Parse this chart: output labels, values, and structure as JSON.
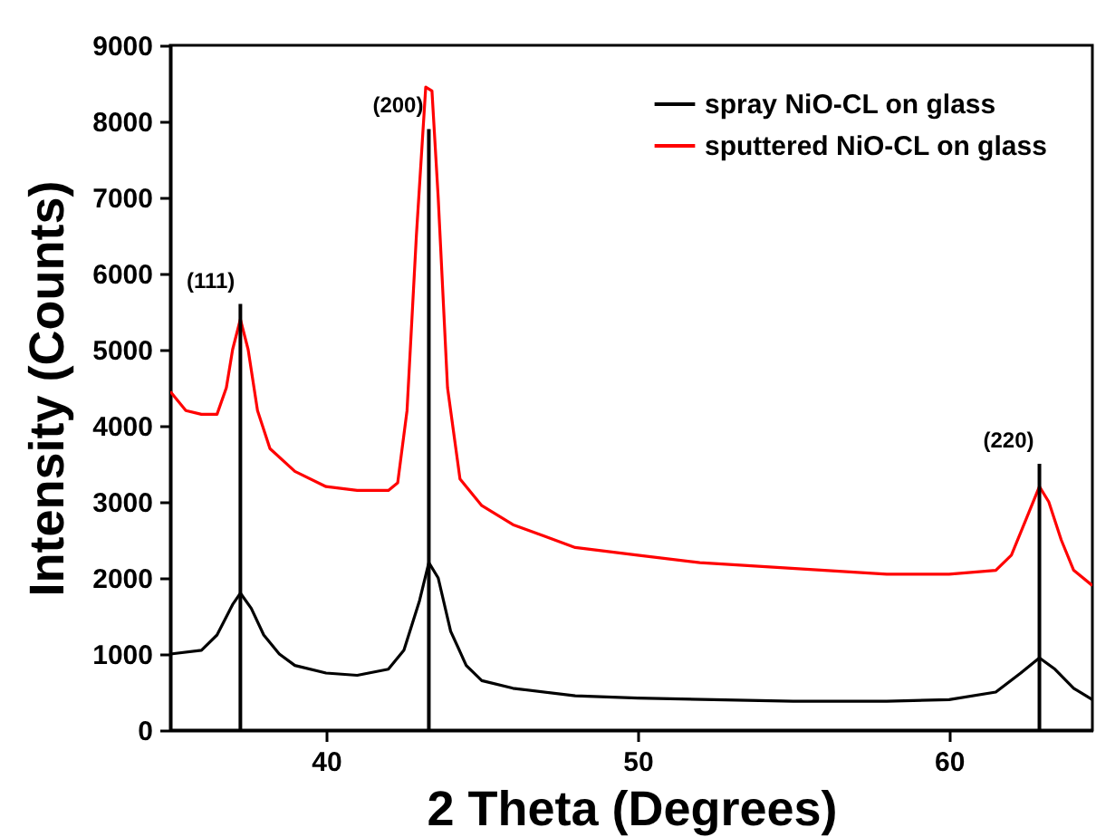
{
  "chart_data": {
    "type": "line",
    "xlabel": "2 Theta (Degrees)",
    "ylabel": "Intensity (Counts)",
    "xlim": [
      35,
      64.6
    ],
    "xticks": [
      40,
      50,
      60
    ],
    "ylim": [
      0,
      9000
    ],
    "yticks": [
      0,
      1000,
      2000,
      3000,
      4000,
      5000,
      6000,
      7000,
      8000,
      9000
    ],
    "legend": "top right",
    "grid": false,
    "series": [
      {
        "name": "spray  NiO-CL on glass",
        "color": "#000000",
        "x": [
          35,
          36,
          36.5,
          37,
          37.25,
          37.6,
          38,
          38.5,
          39,
          40,
          41,
          42,
          42.5,
          43,
          43.3,
          43.6,
          44,
          44.5,
          45,
          46,
          48,
          50,
          55,
          58,
          60,
          61.5,
          62.3,
          62.9,
          63.4,
          64,
          64.6
        ],
        "values": [
          1000,
          1050,
          1250,
          1650,
          1800,
          1600,
          1250,
          1000,
          850,
          750,
          720,
          800,
          1050,
          1700,
          2200,
          2000,
          1300,
          850,
          650,
          550,
          450,
          420,
          380,
          380,
          400,
          500,
          750,
          950,
          800,
          550,
          400
        ]
      },
      {
        "name": "sputtered  NiO-CL on glass",
        "color": "#ff0000",
        "x": [
          35,
          35.5,
          36,
          36.5,
          36.8,
          37,
          37.25,
          37.5,
          37.8,
          38.2,
          39,
          40,
          41,
          42,
          42.3,
          42.6,
          42.9,
          43.2,
          43.4,
          43.6,
          43.9,
          44.3,
          45,
          46,
          47,
          48,
          50,
          52,
          54,
          56,
          58,
          60,
          61.5,
          62,
          62.5,
          62.9,
          63.2,
          63.6,
          64,
          64.6
        ],
        "values": [
          4450,
          4200,
          4150,
          4150,
          4500,
          5000,
          5400,
          5000,
          4200,
          3700,
          3400,
          3200,
          3150,
          3150,
          3250,
          4200,
          6500,
          8450,
          8400,
          7000,
          4500,
          3300,
          2950,
          2700,
          2550,
          2400,
          2300,
          2200,
          2150,
          2100,
          2050,
          2050,
          2100,
          2300,
          2800,
          3200,
          3000,
          2500,
          2100,
          1900
        ]
      },
      {
        "type": "bar",
        "color": "#000000",
        "x": [
          37.25,
          43.3,
          62.9
        ],
        "values": [
          5600,
          7900,
          3500
        ]
      }
    ],
    "annotations": [
      {
        "text": "(111)",
        "x": 37.25,
        "y": 5600
      },
      {
        "text": "(200)",
        "x": 43.3,
        "y": 7900
      },
      {
        "text": "(220)",
        "x": 62.9,
        "y": 3500
      }
    ]
  }
}
